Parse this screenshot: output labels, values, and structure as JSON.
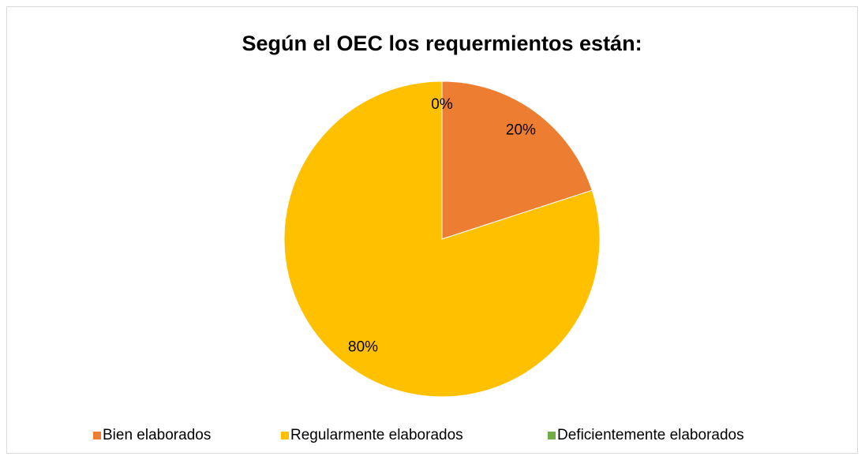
{
  "chart_data": {
    "type": "pie",
    "title": "Según el OEC los requermientos están:",
    "categories": [
      "Bien elaborados",
      "Regularmente elaborados",
      "Deficientemente elaborados"
    ],
    "values": [
      20,
      80,
      0
    ],
    "value_labels": [
      "20%",
      "80%",
      "0%"
    ],
    "colors": [
      "#ED7D31",
      "#FFC000",
      "#70AD47"
    ],
    "legend": "bottom"
  }
}
